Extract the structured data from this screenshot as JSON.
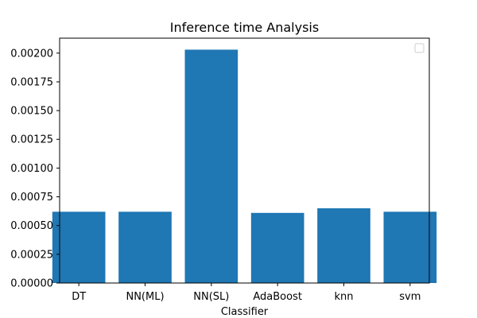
{
  "chart_data": {
    "type": "bar",
    "title": "Inference time Analysis",
    "xlabel": "Classifier",
    "ylabel": "",
    "categories": [
      "DT",
      "NN(ML)",
      "NN(SL)",
      "AdaBoost",
      "knn",
      "svm"
    ],
    "values": [
      0.00062,
      0.00062,
      0.00203,
      0.00061,
      0.00065,
      0.00062
    ],
    "ylim": [
      0,
      0.00213
    ],
    "yticks": [
      0.0,
      0.00025,
      0.0005,
      0.00075,
      0.001,
      0.00125,
      0.0015,
      0.00175,
      0.002
    ],
    "ytick_labels": [
      "0.00000",
      "0.00025",
      "0.00050",
      "0.00075",
      "0.00100",
      "0.00125",
      "0.00150",
      "0.00175",
      "0.00200"
    ],
    "bar_color": "#1f77b4",
    "grid": false,
    "legend": {
      "placement": "top-right",
      "entries": []
    }
  }
}
